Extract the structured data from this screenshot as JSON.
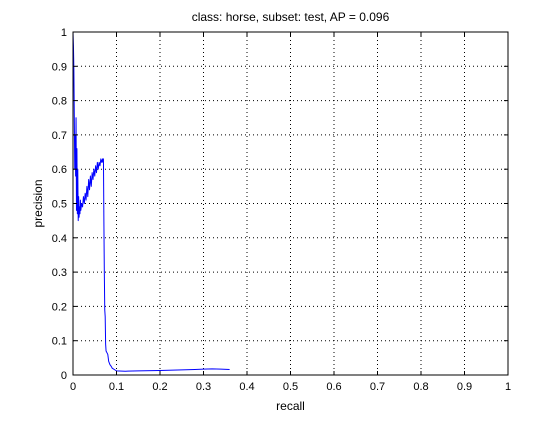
{
  "chart_data": {
    "type": "line",
    "title": "class: horse, subset: test, AP = 0.096",
    "xlabel": "recall",
    "ylabel": "precision",
    "xlim": [
      0,
      1
    ],
    "ylim": [
      0,
      1
    ],
    "xticks": [
      "0",
      "0.1",
      "0.2",
      "0.3",
      "0.4",
      "0.5",
      "0.6",
      "0.7",
      "0.8",
      "0.9",
      "1"
    ],
    "yticks": [
      "0",
      "0.1",
      "0.2",
      "0.3",
      "0.4",
      "0.5",
      "0.6",
      "0.7",
      "0.8",
      "0.9",
      "1"
    ],
    "grid": true,
    "grid_style": "dotted",
    "line_color": "#0000ff",
    "series": [
      {
        "x": [
          0,
          0.001,
          0.002,
          0.003,
          0.004,
          0.005,
          0.006,
          0.007,
          0.008,
          0.009,
          0.01,
          0.011,
          0.012,
          0.013,
          0.014,
          0.015,
          0.016,
          0.017,
          0.018,
          0.02,
          0.022,
          0.024,
          0.026,
          0.028,
          0.03,
          0.032,
          0.034,
          0.036,
          0.038,
          0.04,
          0.042,
          0.044,
          0.046,
          0.048,
          0.05,
          0.052,
          0.054,
          0.056,
          0.058,
          0.06,
          0.062,
          0.064,
          0.066,
          0.068,
          0.069,
          0.07,
          0.071,
          0.072,
          0.073,
          0.074,
          0.075,
          0.076,
          0.078,
          0.08,
          0.082,
          0.085,
          0.088,
          0.09,
          0.1,
          0.12,
          0.15,
          0.2,
          0.25,
          0.28,
          0.3,
          0.32,
          0.34,
          0.36
        ],
        "y": [
          1.0,
          0.96,
          0.89,
          0.75,
          0.6,
          0.7,
          0.58,
          0.75,
          0.48,
          0.66,
          0.47,
          0.6,
          0.45,
          0.52,
          0.46,
          0.49,
          0.47,
          0.51,
          0.48,
          0.5,
          0.49,
          0.52,
          0.5,
          0.53,
          0.51,
          0.55,
          0.52,
          0.57,
          0.54,
          0.58,
          0.55,
          0.59,
          0.57,
          0.6,
          0.58,
          0.61,
          0.59,
          0.62,
          0.6,
          0.62,
          0.61,
          0.63,
          0.62,
          0.63,
          0.62,
          0.63,
          0.45,
          0.3,
          0.19,
          0.17,
          0.09,
          0.07,
          0.065,
          0.06,
          0.04,
          0.03,
          0.025,
          0.02,
          0.012,
          0.011,
          0.012,
          0.013,
          0.015,
          0.016,
          0.017,
          0.018,
          0.017,
          0.016
        ]
      }
    ]
  }
}
